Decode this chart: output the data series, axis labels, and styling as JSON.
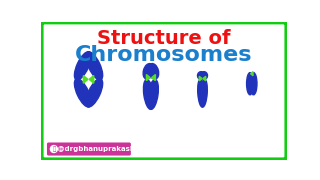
{
  "title_line1": "Structure of",
  "title_line2": "Chromosomes",
  "title_color1": "#EE1111",
  "title_color2": "#1A7FCC",
  "bg_color": "#FFFFFF",
  "border_color": "#11CC11",
  "chromosome_color": "#2233BB",
  "centromere_color": "#55DD22",
  "instagram_text": " @drgbhanuprakash",
  "instagram_bg": "#CC3399",
  "font_size1": 14,
  "font_size2": 16,
  "border_lw": 4
}
